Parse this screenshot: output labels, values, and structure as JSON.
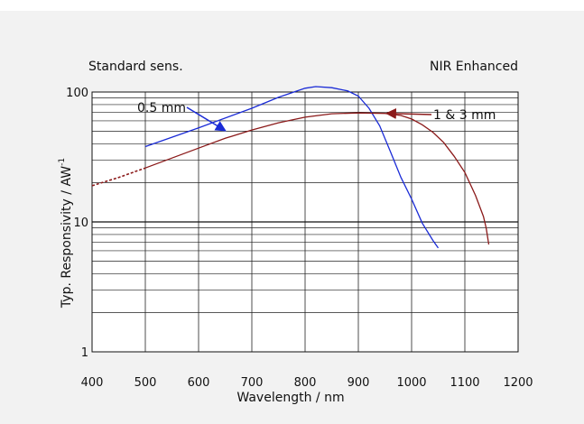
{
  "chart_data": {
    "type": "line",
    "header_left": "Standard sens.",
    "header_right": "NIR Enhanced",
    "xlabel": "Wavelength / nm",
    "ylabel": "Typ. Responsivity / AW",
    "ylabel_sup": "-1",
    "xlim": [
      400,
      1200
    ],
    "ylim": [
      1,
      100
    ],
    "yscale": "log",
    "grid": true,
    "x_ticks": [
      "400",
      "500",
      "600",
      "700",
      "800",
      "900",
      "1000",
      "1100",
      "1200"
    ],
    "y_ticks": [
      "100",
      "10",
      "1"
    ],
    "series": [
      {
        "name": "0.5 mm",
        "color": "#1a2bd6",
        "points": [
          [
            500,
            38
          ],
          [
            600,
            53
          ],
          [
            700,
            75
          ],
          [
            750,
            91
          ],
          [
            800,
            107
          ],
          [
            820,
            110
          ],
          [
            850,
            108
          ],
          [
            880,
            102
          ],
          [
            900,
            93
          ],
          [
            920,
            75
          ],
          [
            940,
            55
          ],
          [
            960,
            35
          ],
          [
            980,
            22
          ],
          [
            1000,
            15
          ],
          [
            1020,
            9.8
          ],
          [
            1040,
            7.2
          ],
          [
            1050,
            6.3
          ]
        ]
      },
      {
        "name": "1 & 3 mm",
        "color": "#8b1a1a",
        "dashed_points": [
          [
            400,
            19
          ],
          [
            450,
            22
          ],
          [
            500,
            26
          ]
        ],
        "points": [
          [
            500,
            26
          ],
          [
            550,
            31
          ],
          [
            600,
            37
          ],
          [
            650,
            44
          ],
          [
            700,
            51
          ],
          [
            750,
            58
          ],
          [
            800,
            64
          ],
          [
            850,
            68
          ],
          [
            900,
            69
          ],
          [
            950,
            68.5
          ],
          [
            980,
            66
          ],
          [
            1000,
            62
          ],
          [
            1020,
            56
          ],
          [
            1040,
            49
          ],
          [
            1060,
            41
          ],
          [
            1080,
            32
          ],
          [
            1100,
            24
          ],
          [
            1120,
            16
          ],
          [
            1135,
            11
          ],
          [
            1140,
            9
          ],
          [
            1145,
            6.7
          ]
        ]
      }
    ],
    "annotations": [
      {
        "text": "0.5 mm",
        "series": "0.5 mm"
      },
      {
        "text": "1 & 3 mm",
        "series": "1 & 3 mm"
      }
    ]
  }
}
